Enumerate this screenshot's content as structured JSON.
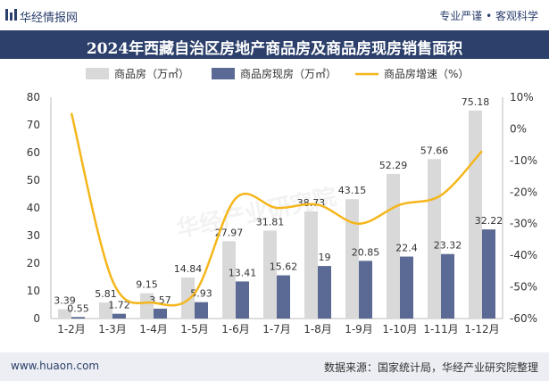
{
  "header": {
    "brand": "华经情报网",
    "tagline": "专业严谨 • 客观科学"
  },
  "footer": {
    "site": "www.huaon.com",
    "source": "数据来源：国家统计局，华经产业研究院整理"
  },
  "watermark": "华经产业研究院",
  "chart_data": {
    "type": "bar",
    "title": "2024年西藏自治区房地产商品房及商品房现房销售面积",
    "categories": [
      "1-2月",
      "1-3月",
      "1-4月",
      "1-5月",
      "1-6月",
      "1-7月",
      "1-8月",
      "1-9月",
      "1-10月",
      "1-11月",
      "1-12月"
    ],
    "series": [
      {
        "name": "商品房（万㎡）",
        "kind": "bar",
        "color": "#d9d9d9",
        "values": [
          3.39,
          5.81,
          9.15,
          14.84,
          27.97,
          31.81,
          38.73,
          43.15,
          52.29,
          57.66,
          75.18
        ]
      },
      {
        "name": "商品房现房（万㎡）",
        "kind": "bar",
        "color": "#5a6a94",
        "values": [
          0.55,
          1.72,
          3.57,
          5.93,
          13.41,
          15.62,
          19,
          20.85,
          22.4,
          23.32,
          32.22
        ]
      },
      {
        "name": "商品房增速（%）",
        "kind": "line",
        "color": "#f5b61b",
        "values": [
          5,
          -48,
          -55,
          -52,
          -22,
          -25,
          -24,
          -30,
          -24,
          -21,
          -7
        ]
      }
    ],
    "y_left": {
      "min": 0,
      "max": 80,
      "ticks": [
        0,
        10,
        20,
        30,
        40,
        50,
        60,
        70,
        80
      ]
    },
    "y_right": {
      "min": -60,
      "max": 10,
      "ticks": [
        10,
        0,
        -10,
        -20,
        -30,
        -40,
        -50,
        -60
      ],
      "tick_labels": [
        "10%",
        "0%",
        "-10%",
        "-20%",
        "-30%",
        "-40%",
        "-50%",
        "-60%"
      ]
    },
    "legend": "top"
  }
}
